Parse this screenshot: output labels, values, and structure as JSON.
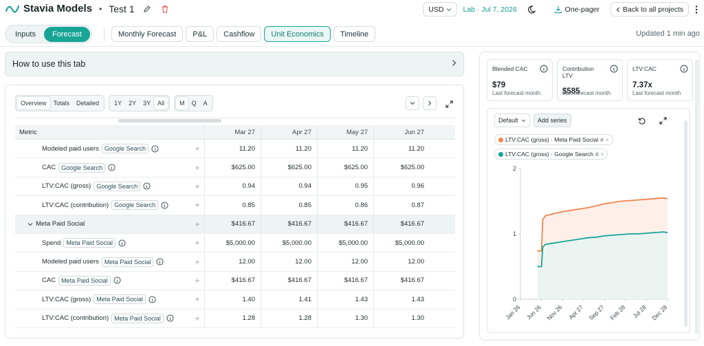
{
  "app": {
    "title": "Stavia Models",
    "separator": "•",
    "project": "Test 1"
  },
  "top": {
    "currency": "USD",
    "lab": "Lab · Jul 7, 2026",
    "onepager": "One-pager",
    "back": "Back to all projects"
  },
  "tabs_primary": [
    {
      "label": "Inputs",
      "active": false
    },
    {
      "label": "Forecast",
      "active": true
    }
  ],
  "tabs_secondary": [
    {
      "label": "Monthly Forecast",
      "active": false
    },
    {
      "label": "P&L",
      "active": false
    },
    {
      "label": "Cashflow",
      "active": false
    },
    {
      "label": "Unit Economics",
      "active": true
    },
    {
      "label": "Timeline",
      "active": false
    }
  ],
  "updated": "Updated 1 min ago",
  "howto": "How to use this tab",
  "controls": {
    "view": [
      "Overview",
      "Totals",
      "Detailed"
    ],
    "range": [
      "1Y",
      "2Y",
      "3Y",
      "All"
    ],
    "grain": [
      "M",
      "Q",
      "A"
    ]
  },
  "table": {
    "metric_header": "Metric",
    "columns": [
      "Mar 27",
      "Apr 27",
      "May 27",
      "Jun 27"
    ],
    "rows": [
      {
        "label": "Modeled paid users",
        "badge": "Google Search",
        "info": true,
        "values": [
          "11.20",
          "11.20",
          "11.20",
          "11.20"
        ]
      },
      {
        "label": "CAC",
        "badge": "Google Search",
        "info": true,
        "values": [
          "$625.00",
          "$625.00",
          "$625.00",
          "$625.00"
        ]
      },
      {
        "label": "LTV:CAC (gross)",
        "badge": "Google Search",
        "info": true,
        "values": [
          "0.94",
          "0.94",
          "0.95",
          "0.96"
        ]
      },
      {
        "label": "LTV:CAC (contribution)",
        "badge": "Google Search",
        "info": true,
        "values": [
          "0.85",
          "0.85",
          "0.86",
          "0.87"
        ]
      },
      {
        "label": "Meta Paid Social",
        "badge": "",
        "group": true,
        "values": [
          "$416.67",
          "$416.67",
          "$416.67",
          "$416.67"
        ]
      },
      {
        "label": "Spend",
        "badge": "Meta Paid Social",
        "info": true,
        "values": [
          "$5,000.00",
          "$5,000.00",
          "$5,000.00",
          "$5,000.00"
        ]
      },
      {
        "label": "Modeled paid users",
        "badge": "Meta Paid Social",
        "info": true,
        "values": [
          "12.00",
          "12.00",
          "12.00",
          "12.00"
        ]
      },
      {
        "label": "CAC",
        "badge": "Meta Paid Social",
        "info": true,
        "values": [
          "$416.67",
          "$416.67",
          "$416.67",
          "$416.67"
        ]
      },
      {
        "label": "LTV:CAC (gross)",
        "badge": "Meta Paid Social",
        "info": true,
        "values": [
          "1.40",
          "1.41",
          "1.43",
          "1.43"
        ]
      },
      {
        "label": "LTV:CAC (contribution)",
        "badge": "Meta Paid Social",
        "info": true,
        "values": [
          "1.28",
          "1.28",
          "1.30",
          "1.30"
        ]
      }
    ]
  },
  "kpis": [
    {
      "label": "Blended CAC",
      "value": "$79",
      "sub": "Last forecast month"
    },
    {
      "label": "Contribution LTV",
      "value": "$585",
      "sub": "Last forecast month"
    },
    {
      "label": "LTV:CAC",
      "value": "7.37x",
      "sub": "Last forecast month"
    }
  ],
  "chart_controls": {
    "preset": "Default",
    "add": "Add series"
  },
  "chips": [
    {
      "label": "LTV:CAC (gross) · Meta Paid Social",
      "color": "#f0834d"
    },
    {
      "label": "LTV:CAC (gross) · Google Search",
      "color": "#15a596"
    }
  ],
  "colors": {
    "accent": "#17a596",
    "orange": "#f0834d",
    "teal": "#15a596"
  },
  "chart_data": {
    "type": "line",
    "x_ticks": [
      "Jan 26",
      "Jun 26",
      "Nov 26",
      "Apr 27",
      "Sep 27",
      "Feb 28",
      "Jul 28",
      "Dec 28"
    ],
    "ylim": [
      0,
      2
    ],
    "y_ticks": [
      0,
      1,
      2
    ],
    "series": [
      {
        "name": "LTV:CAC (gross) · Meta Paid Social",
        "points": [
          [
            4,
            0.74
          ],
          [
            5,
            0.74
          ],
          [
            5.3,
            1.22
          ],
          [
            6,
            1.28
          ],
          [
            8,
            1.31
          ],
          [
            10,
            1.34
          ],
          [
            12,
            1.36
          ],
          [
            14,
            1.38
          ],
          [
            16,
            1.4
          ],
          [
            18,
            1.43
          ],
          [
            20,
            1.46
          ],
          [
            22,
            1.48
          ],
          [
            24,
            1.5
          ],
          [
            26,
            1.51
          ],
          [
            28,
            1.52
          ],
          [
            30,
            1.53
          ],
          [
            32,
            1.54
          ],
          [
            34,
            1.55
          ],
          [
            35,
            1.54
          ]
        ]
      },
      {
        "name": "LTV:CAC (gross) · Google Search",
        "points": [
          [
            4,
            0.5
          ],
          [
            5,
            0.5
          ],
          [
            5.3,
            0.8
          ],
          [
            6,
            0.84
          ],
          [
            8,
            0.86
          ],
          [
            10,
            0.88
          ],
          [
            12,
            0.9
          ],
          [
            14,
            0.92
          ],
          [
            16,
            0.94
          ],
          [
            18,
            0.95
          ],
          [
            20,
            0.97
          ],
          [
            22,
            0.98
          ],
          [
            24,
            0.99
          ],
          [
            26,
            1.0
          ],
          [
            28,
            1.0
          ],
          [
            30,
            1.01
          ],
          [
            32,
            1.02
          ],
          [
            34,
            1.03
          ],
          [
            35,
            1.02
          ]
        ]
      }
    ]
  }
}
